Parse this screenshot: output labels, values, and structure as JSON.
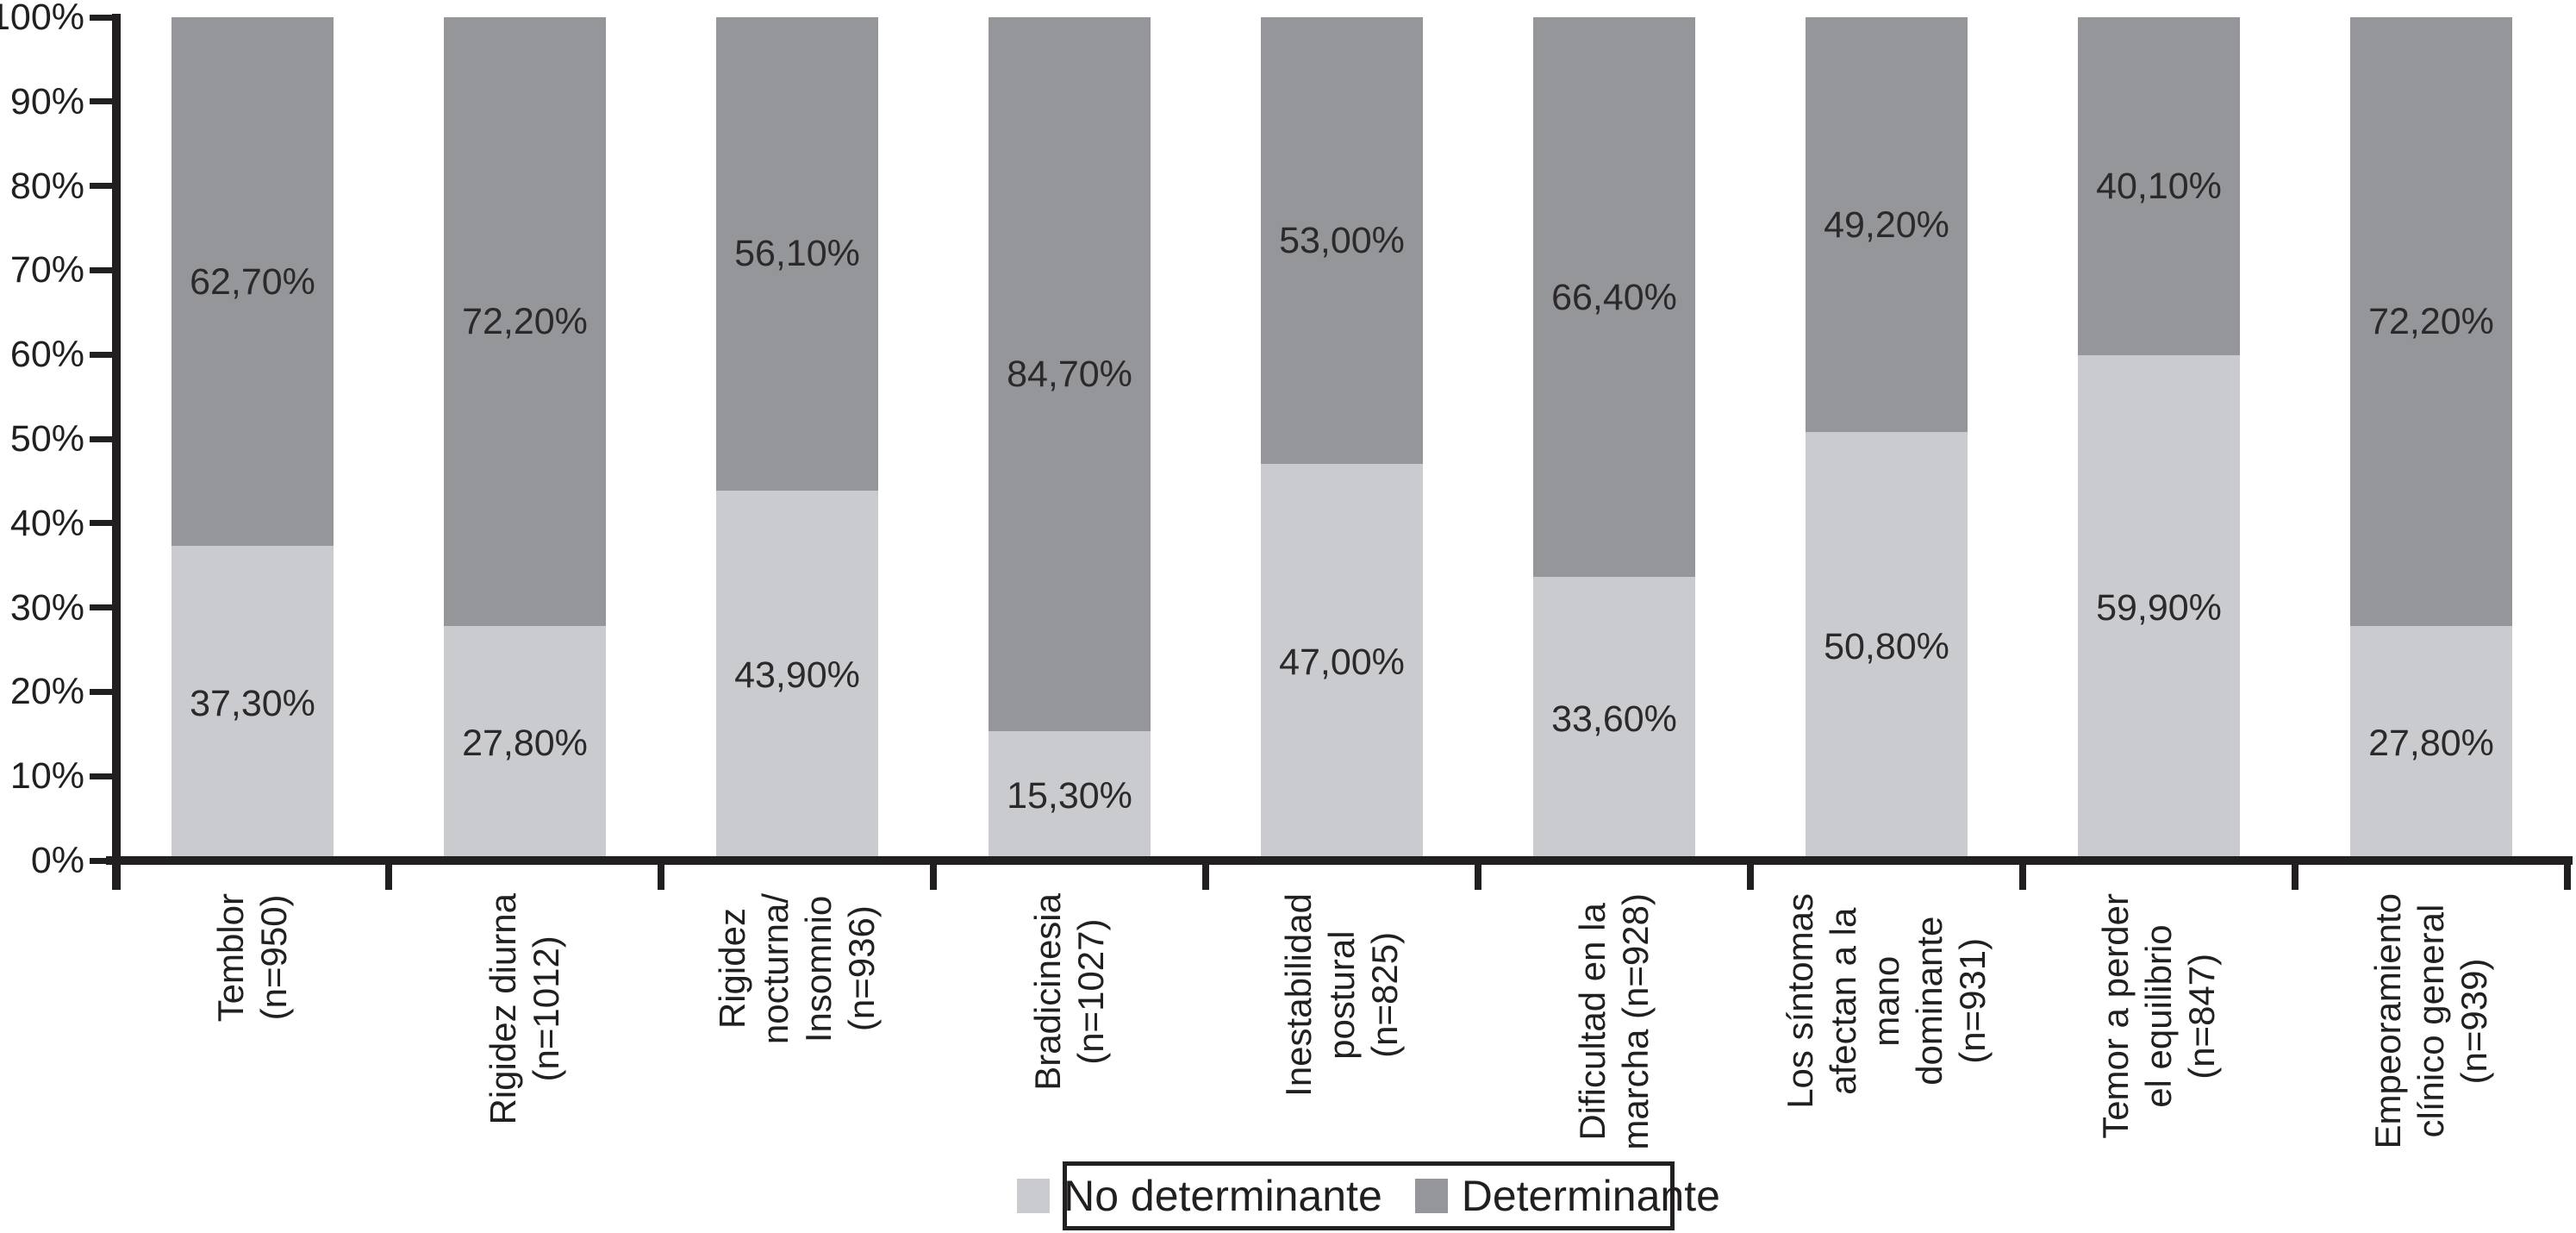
{
  "chart_data": {
    "type": "bar",
    "stacked": true,
    "orientation": "vertical",
    "title": "",
    "xlabel": "",
    "ylabel": "",
    "ylim": [
      0,
      100
    ],
    "grid": false,
    "legend_position": "bottom",
    "y_axis": {
      "tick_labels": [
        "0%",
        "10%",
        "20%",
        "30%",
        "40%",
        "50%",
        "60%",
        "70%",
        "80%",
        "90%",
        "100%"
      ],
      "tick_values": [
        0,
        10,
        20,
        30,
        40,
        50,
        60,
        70,
        80,
        90,
        100
      ]
    },
    "categories": [
      {
        "label": "Temblor (n=950)",
        "label_lines": [
          "Temblor",
          "(n=950)"
        ]
      },
      {
        "label": "Rigidez diurna (n=1012)",
        "label_lines": [
          "Rigidez diurna",
          "(n=1012)"
        ]
      },
      {
        "label": "Rigidez nocturna/ Insomnio (n=936)",
        "label_lines": [
          "Rigidez",
          "nocturna/",
          "Insomnio",
          "(n=936)"
        ]
      },
      {
        "label": "Bradicinesia (n=1027)",
        "label_lines": [
          "Bradicinesia",
          "(n=1027)"
        ]
      },
      {
        "label": "Inestabilidad postural (n=825)",
        "label_lines": [
          "Inestabilidad",
          "postural",
          "(n=825)"
        ]
      },
      {
        "label": "Dificultad en la marcha (n=928)",
        "label_lines": [
          "Dificultad en la",
          "marcha (n=928)"
        ]
      },
      {
        "label": "Los síntomas afectan a la mano dominante (n=931)",
        "label_lines": [
          "Los síntomas",
          "afectan a la",
          "mano",
          "dominante",
          "(n=931)"
        ]
      },
      {
        "label": "Temor a perder el equilibrio (n=847)",
        "label_lines": [
          "Temor a perder",
          "el equilibrio",
          "(n=847)"
        ]
      },
      {
        "label": "Empeoramiento clínico general (n=939)",
        "label_lines": [
          "Empeoramiento",
          "clínico general",
          "(n=939)"
        ]
      }
    ],
    "series": [
      {
        "name": "No determinante",
        "color": "#cacbce",
        "values": [
          37.3,
          27.8,
          43.9,
          15.3,
          47.0,
          33.6,
          50.8,
          59.9,
          27.8
        ],
        "value_labels": [
          "37,30%",
          "27,80%",
          "43,90%",
          "15,30%",
          "47,00%",
          "33,60%",
          "50,80%",
          "59,90%",
          "27,80%"
        ]
      },
      {
        "name": "Determinante",
        "color": "#959699",
        "values": [
          62.7,
          72.2,
          56.1,
          84.7,
          53.0,
          66.4,
          49.2,
          40.1,
          72.2
        ],
        "value_labels": [
          "62,70%",
          "72,20%",
          "56,10%",
          "84,70%",
          "53,00%",
          "66,40%",
          "49,20%",
          "40,10%",
          "72,20%"
        ]
      }
    ]
  },
  "legend": {
    "items": [
      {
        "label": "No determinante",
        "color": "#cacbce"
      },
      {
        "label": "Determinante",
        "color": "#959699"
      }
    ]
  },
  "colors": {
    "axis": "#221f20",
    "text": "#221f20",
    "background": "#ffffff"
  }
}
